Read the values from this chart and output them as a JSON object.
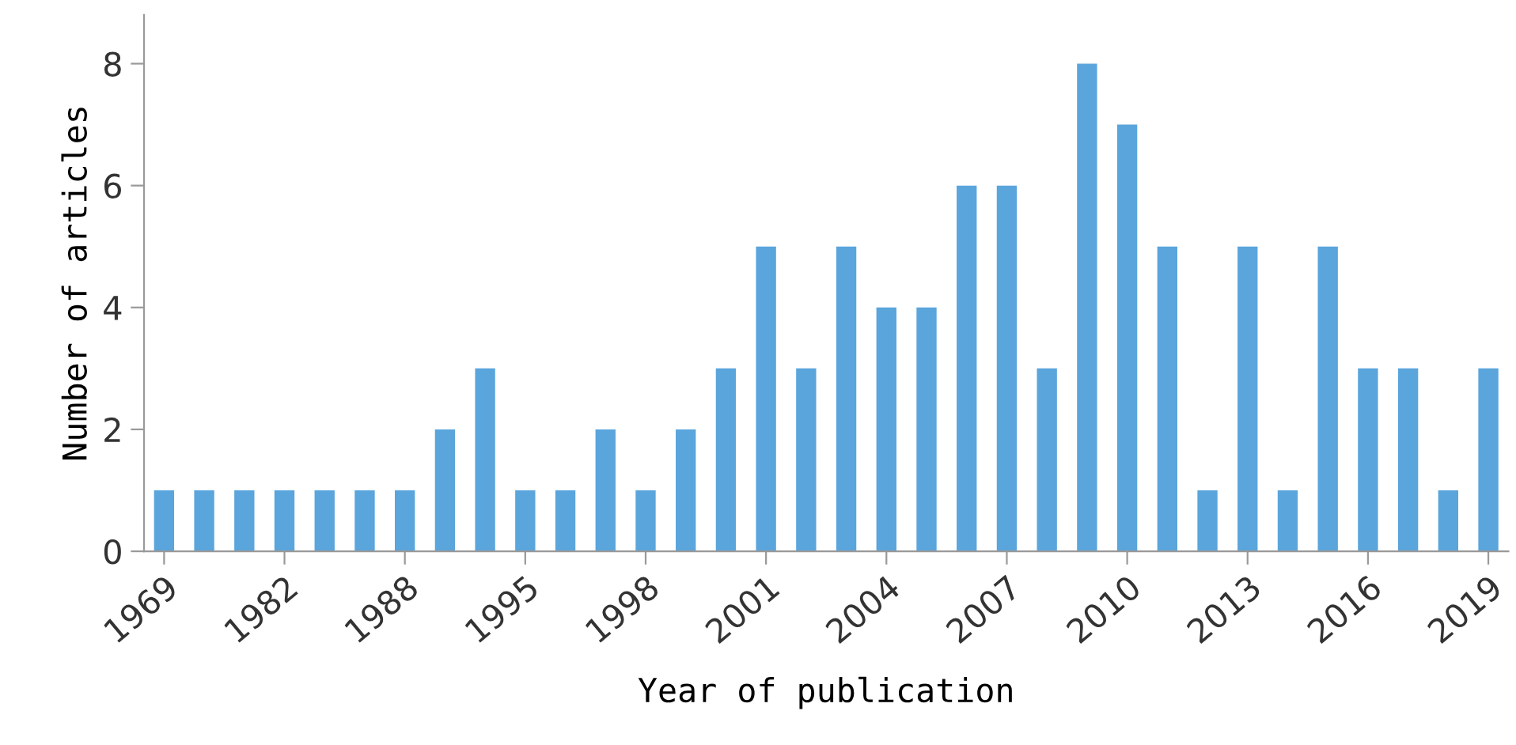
{
  "chart_data": {
    "type": "bar",
    "xlabel": "Year of publication",
    "ylabel": "Number of articles",
    "categories": [
      "1969",
      null,
      null,
      "1982",
      null,
      null,
      "1988",
      null,
      null,
      "1995",
      null,
      null,
      "1998",
      null,
      null,
      "2001",
      null,
      null,
      "2004",
      null,
      null,
      "2007",
      null,
      null,
      "2010",
      null,
      null,
      "2013",
      null,
      null,
      "2016",
      null,
      null,
      "2019"
    ],
    "values": [
      1,
      1,
      1,
      1,
      1,
      1,
      1,
      2,
      3,
      1,
      1,
      2,
      1,
      2,
      3,
      5,
      3,
      5,
      4,
      4,
      6,
      6,
      3,
      8,
      7,
      5,
      1,
      5,
      1,
      5,
      3,
      3,
      1,
      3
    ],
    "color": "#5aa5dc",
    "ylim": [
      0,
      8.8
    ],
    "yticks": [
      0,
      2,
      4,
      6,
      8
    ],
    "grid": false,
    "legend": false
  }
}
